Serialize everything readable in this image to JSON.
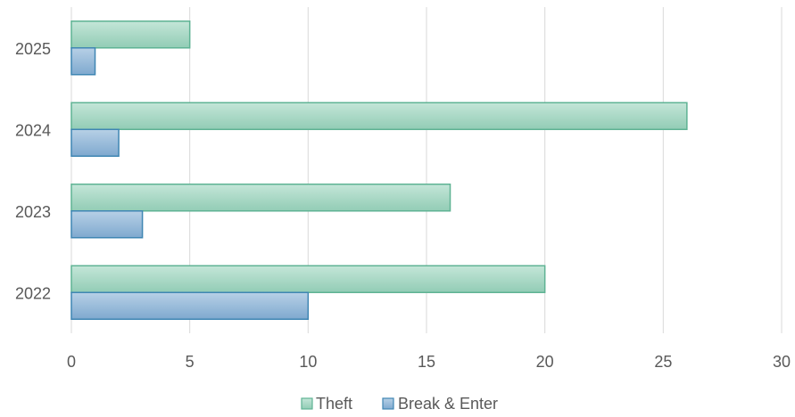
{
  "chart_data": {
    "type": "bar",
    "orientation": "horizontal",
    "title": "",
    "xlabel": "",
    "ylabel": "",
    "categories": [
      "2022",
      "2023",
      "2024",
      "2025"
    ],
    "series": [
      {
        "name": "Theft",
        "values": [
          20,
          16,
          26,
          5
        ],
        "color": "#9fd3be",
        "stroke": "#5fb394"
      },
      {
        "name": "Break & Enter",
        "values": [
          10,
          3,
          2,
          1
        ],
        "color": "#8fb3d4",
        "stroke": "#3f86b3"
      }
    ],
    "xlim": [
      0,
      30
    ],
    "x_ticks": [
      "0",
      "5",
      "10",
      "15",
      "20",
      "25",
      "30"
    ],
    "grid": "vertical",
    "legend": "bottom"
  }
}
